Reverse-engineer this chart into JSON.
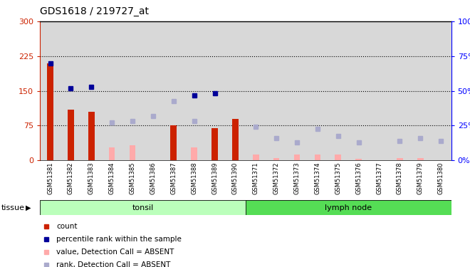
{
  "title": "GDS1618 / 219727_at",
  "samples": [
    "GSM51381",
    "GSM51382",
    "GSM51383",
    "GSM51384",
    "GSM51385",
    "GSM51386",
    "GSM51387",
    "GSM51388",
    "GSM51389",
    "GSM51390",
    "GSM51371",
    "GSM51372",
    "GSM51373",
    "GSM51374",
    "GSM51375",
    "GSM51376",
    "GSM51377",
    "GSM51378",
    "GSM51379",
    "GSM51380"
  ],
  "bar_values": [
    210,
    110,
    105,
    null,
    null,
    null,
    75,
    null,
    70,
    90,
    null,
    null,
    null,
    null,
    null,
    null,
    null,
    null,
    null,
    null
  ],
  "bar_absent_values": [
    null,
    null,
    null,
    28,
    32,
    null,
    null,
    28,
    null,
    null,
    12,
    5,
    12,
    12,
    12,
    3,
    null,
    5,
    5,
    null
  ],
  "rank_present_y": [
    210,
    155,
    158,
    null,
    null,
    null,
    null,
    140,
    145,
    null,
    null,
    null,
    null,
    null,
    null,
    null,
    null,
    null,
    null,
    null
  ],
  "rank_absent_y": [
    null,
    null,
    null,
    82,
    85,
    95,
    128,
    85,
    null,
    null,
    72,
    48,
    38,
    68,
    52,
    38,
    null,
    42,
    47,
    42
  ],
  "ylim_left": [
    0,
    300
  ],
  "yticks_left": [
    0,
    75,
    150,
    225,
    300
  ],
  "yticks_right": [
    0,
    25,
    50,
    75,
    100
  ],
  "ytick_labels_right": [
    "0%",
    "25%",
    "50%",
    "75%",
    "100%"
  ],
  "hlines": [
    75,
    150,
    225
  ],
  "bar_color_present": "#cc2200",
  "bar_color_absent": "#ffaaaa",
  "rank_color_present": "#000099",
  "rank_color_absent": "#aaaacc",
  "tonsil_color": "#bbffbb",
  "lymph_color": "#55dd55",
  "tissue_label": "tissue",
  "tonsil_label": "tonsil",
  "lymph_label": "lymph node",
  "bg_color": "#ffffff",
  "col_bg": "#d8d8d8",
  "legend_items": [
    {
      "color": "#cc2200",
      "label": "count"
    },
    {
      "color": "#000099",
      "label": "percentile rank within the sample"
    },
    {
      "color": "#ffaaaa",
      "label": "value, Detection Call = ABSENT"
    },
    {
      "color": "#aaaacc",
      "label": "rank, Detection Call = ABSENT"
    }
  ]
}
